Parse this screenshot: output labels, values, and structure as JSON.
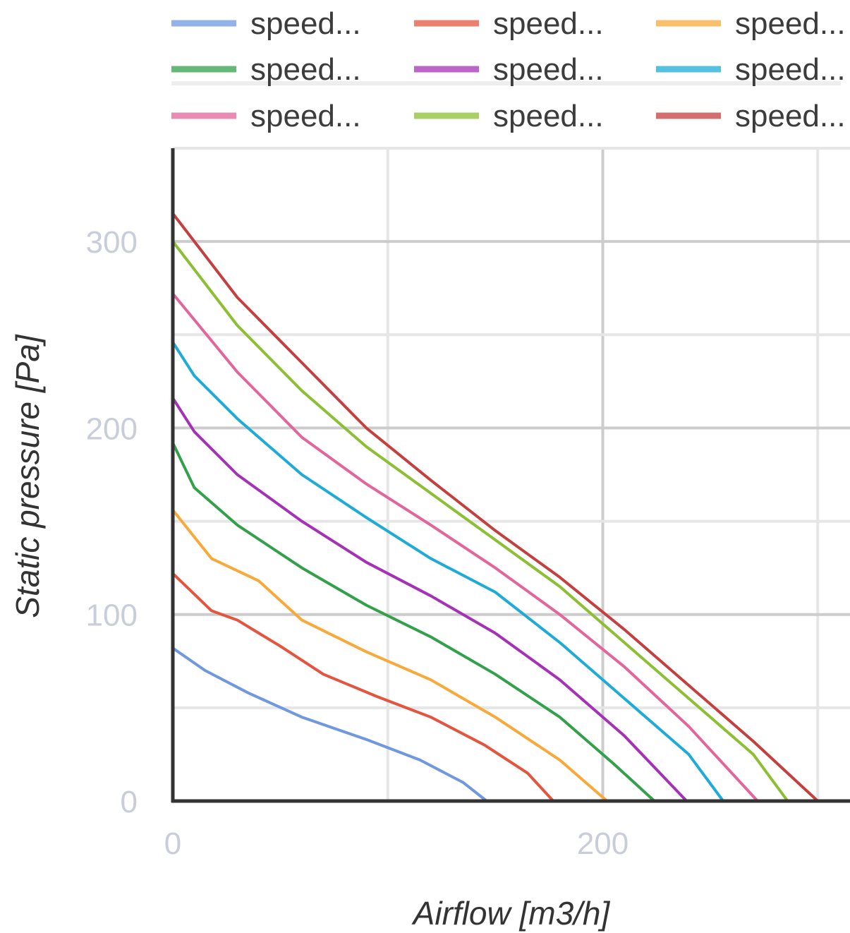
{
  "chart_data": {
    "type": "line",
    "title": "",
    "xlabel": "Airflow [m3/h]",
    "ylabel": "Static pressure [Pa]",
    "xlim": [
      0,
      315
    ],
    "ylim": [
      0,
      350
    ],
    "x_ticks": [
      "0",
      "200"
    ],
    "y_ticks": [
      "0",
      "100",
      "200",
      "300"
    ],
    "grid": true,
    "legend_position": "top",
    "series": [
      {
        "name": "speed...",
        "color": "#6f98df",
        "points": [
          [
            0,
            82
          ],
          [
            15,
            70
          ],
          [
            35,
            58
          ],
          [
            60,
            45
          ],
          [
            90,
            33
          ],
          [
            115,
            22
          ],
          [
            135,
            10
          ],
          [
            146,
            0
          ]
        ]
      },
      {
        "name": "speed...",
        "color": "#e4553f",
        "points": [
          [
            0,
            122
          ],
          [
            18,
            102
          ],
          [
            30,
            97
          ],
          [
            50,
            83
          ],
          [
            70,
            68
          ],
          [
            95,
            56
          ],
          [
            120,
            45
          ],
          [
            145,
            30
          ],
          [
            165,
            15
          ],
          [
            177,
            0
          ]
        ]
      },
      {
        "name": "speed...",
        "color": "#f8a93a",
        "points": [
          [
            0,
            156
          ],
          [
            18,
            130
          ],
          [
            40,
            118
          ],
          [
            60,
            97
          ],
          [
            90,
            80
          ],
          [
            120,
            65
          ],
          [
            150,
            45
          ],
          [
            180,
            22
          ],
          [
            202,
            0
          ]
        ]
      },
      {
        "name": "speed...",
        "color": "#33a04b",
        "points": [
          [
            0,
            192
          ],
          [
            10,
            168
          ],
          [
            30,
            148
          ],
          [
            60,
            125
          ],
          [
            90,
            105
          ],
          [
            120,
            88
          ],
          [
            150,
            68
          ],
          [
            180,
            45
          ],
          [
            205,
            20
          ],
          [
            224,
            0
          ]
        ]
      },
      {
        "name": "speed...",
        "color": "#a531b7",
        "points": [
          [
            0,
            216
          ],
          [
            10,
            198
          ],
          [
            30,
            175
          ],
          [
            60,
            150
          ],
          [
            90,
            128
          ],
          [
            120,
            110
          ],
          [
            150,
            90
          ],
          [
            180,
            65
          ],
          [
            210,
            35
          ],
          [
            239,
            0
          ]
        ]
      },
      {
        "name": "speed...",
        "color": "#1eabd5",
        "points": [
          [
            0,
            246
          ],
          [
            10,
            228
          ],
          [
            30,
            205
          ],
          [
            60,
            175
          ],
          [
            90,
            152
          ],
          [
            120,
            130
          ],
          [
            150,
            112
          ],
          [
            180,
            85
          ],
          [
            210,
            55
          ],
          [
            240,
            25
          ],
          [
            256,
            0
          ]
        ]
      },
      {
        "name": "speed...",
        "color": "#e2669c",
        "points": [
          [
            0,
            272
          ],
          [
            10,
            258
          ],
          [
            30,
            230
          ],
          [
            60,
            195
          ],
          [
            90,
            170
          ],
          [
            120,
            148
          ],
          [
            150,
            125
          ],
          [
            180,
            100
          ],
          [
            210,
            72
          ],
          [
            240,
            40
          ],
          [
            272,
            0
          ]
        ]
      },
      {
        "name": "speed...",
        "color": "#8cbf34",
        "points": [
          [
            0,
            300
          ],
          [
            10,
            285
          ],
          [
            30,
            255
          ],
          [
            60,
            220
          ],
          [
            90,
            190
          ],
          [
            120,
            165
          ],
          [
            150,
            140
          ],
          [
            180,
            115
          ],
          [
            210,
            85
          ],
          [
            240,
            55
          ],
          [
            270,
            25
          ],
          [
            286,
            0
          ]
        ]
      },
      {
        "name": "speed...",
        "color": "#c4403f",
        "points": [
          [
            0,
            315
          ],
          [
            10,
            300
          ],
          [
            30,
            270
          ],
          [
            60,
            235
          ],
          [
            90,
            200
          ],
          [
            120,
            172
          ],
          [
            150,
            145
          ],
          [
            180,
            120
          ],
          [
            210,
            92
          ],
          [
            240,
            62
          ],
          [
            270,
            32
          ],
          [
            300,
            0
          ]
        ]
      }
    ]
  }
}
